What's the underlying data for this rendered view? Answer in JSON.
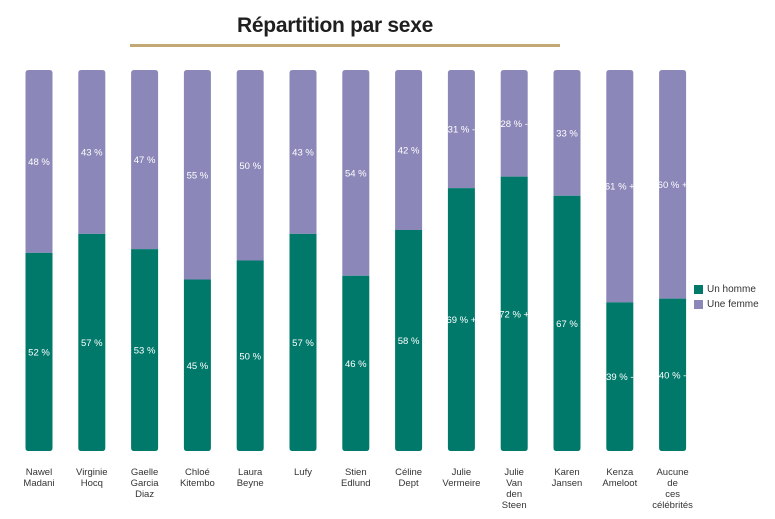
{
  "chart_data": {
    "type": "bar",
    "stacked": true,
    "orientation": "vertical",
    "normalized": true,
    "title": "Répartition par sexe",
    "xlabel": "",
    "ylabel": "",
    "ylim": [
      0,
      100
    ],
    "grid": false,
    "legend_position": "right",
    "categories": [
      [
        "Nawel",
        "Madani"
      ],
      [
        "Virginie",
        "Hocq"
      ],
      [
        "Gaelle",
        "Garcia",
        "Diaz"
      ],
      [
        "Chloé",
        "Kitembo"
      ],
      [
        "Laura",
        "Beyne"
      ],
      [
        "Lufy"
      ],
      [
        "Stien",
        "Edlund"
      ],
      [
        "Céline",
        "Dept"
      ],
      [
        "Julie",
        "Vermeire"
      ],
      [
        "Julie",
        "Van",
        "den",
        "Steen"
      ],
      [
        "Karen",
        "Jansen"
      ],
      [
        "Kenza",
        "Ameloot"
      ],
      [
        "Aucune",
        "de",
        "ces",
        "célébrités"
      ]
    ],
    "series": [
      {
        "name": "Un homme",
        "color": "#00796b",
        "values": [
          52,
          57,
          53,
          45,
          50,
          57,
          46,
          58,
          69,
          72,
          67,
          39,
          40
        ],
        "labels": [
          "52 %",
          "57 %",
          "53 %",
          "45 %",
          "50 %",
          "57 %",
          "46 %",
          "58 %",
          "69 % +",
          "72 % +",
          "67 %",
          "39 % -",
          "40 % -"
        ]
      },
      {
        "name": "Une femme",
        "color": "#8b87b8",
        "values": [
          48,
          43,
          47,
          55,
          50,
          43,
          54,
          42,
          31,
          28,
          33,
          61,
          60
        ],
        "labels": [
          "48 %",
          "43 %",
          "47 %",
          "55 %",
          "50 %",
          "43 %",
          "54 %",
          "42 %",
          "31 % -",
          "28 % -",
          "33 %",
          "61 % +",
          "60 % +"
        ]
      }
    ]
  }
}
